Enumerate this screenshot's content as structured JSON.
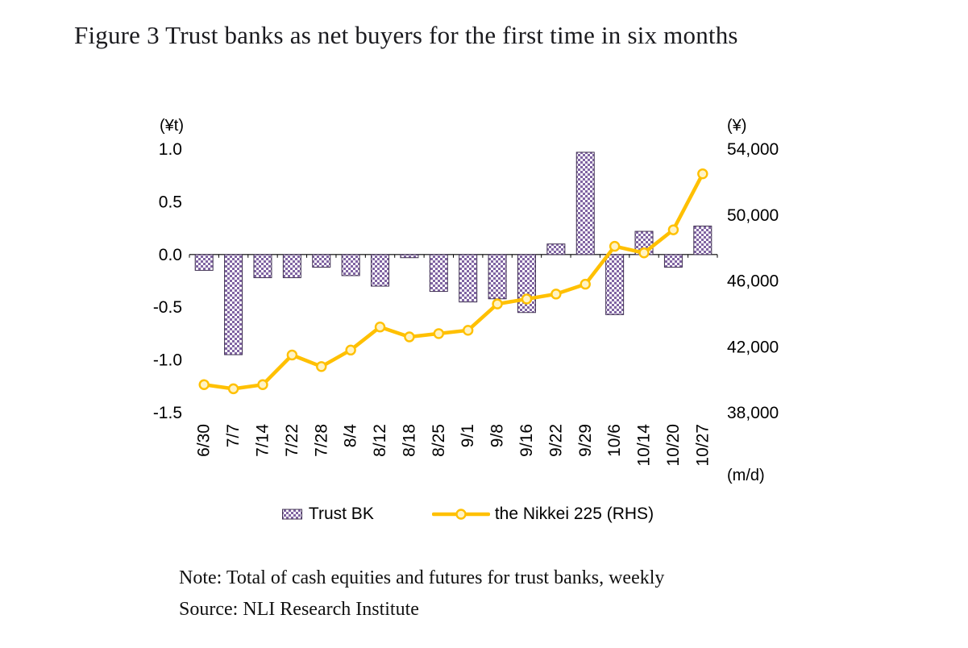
{
  "title": "Figure 3 Trust banks as net buyers for the first time in six months",
  "note": "Note: Total of cash equities and futures for trust banks, weekly",
  "source": "Source: NLI Research Institute",
  "axes": {
    "left_unit": "(¥t)",
    "right_unit": "(¥)",
    "x_unit": "(m/d)",
    "left_ticks": [
      "1.0",
      "0.5",
      "0.0",
      "-0.5",
      "-1.0",
      "-1.5"
    ],
    "right_ticks": [
      "54,000",
      "50,000",
      "46,000",
      "42,000",
      "38,000"
    ]
  },
  "colors": {
    "bar_fill": "#8064A2",
    "bar_stroke": "#403152",
    "line": "#FFC000",
    "marker_fill": "#FFF3C4",
    "axis_line": "#000000"
  },
  "legend": [
    {
      "label": "Trust BK",
      "type": "bar"
    },
    {
      "label": "the Nikkei 225 (RHS)",
      "type": "line"
    }
  ],
  "chart_data": {
    "type": "bar",
    "subtype": "bar+line dual axis",
    "title": "Trust banks as net buyers for the first time in six months",
    "xlabel": "(m/d)",
    "ylabel_left": "(¥t)",
    "ylabel_right": "(¥)",
    "left_ylim": [
      -1.5,
      1.0
    ],
    "right_ylim": [
      38000,
      54000
    ],
    "grid": false,
    "legend_position": "bottom",
    "categories": [
      "6/30",
      "7/7",
      "7/14",
      "7/22",
      "7/28",
      "8/4",
      "8/12",
      "8/18",
      "8/25",
      "9/1",
      "9/8",
      "9/16",
      "9/22",
      "9/29",
      "10/6",
      "10/14",
      "10/20",
      "10/27"
    ],
    "series": [
      {
        "name": "Trust BK",
        "type": "bar",
        "axis": "left",
        "values": [
          -0.15,
          -0.95,
          -0.22,
          -0.22,
          -0.12,
          -0.2,
          -0.3,
          -0.03,
          -0.35,
          -0.45,
          -0.42,
          -0.55,
          0.1,
          0.97,
          -0.57,
          0.22,
          -0.12,
          0.27
        ]
      },
      {
        "name": "the Nikkei 225 (RHS)",
        "type": "line",
        "axis": "right",
        "values": [
          39700,
          39450,
          39700,
          41500,
          40800,
          41800,
          43200,
          42600,
          42800,
          43000,
          44600,
          44900,
          45200,
          45800,
          48100,
          47700,
          49100,
          52500
        ]
      }
    ]
  }
}
